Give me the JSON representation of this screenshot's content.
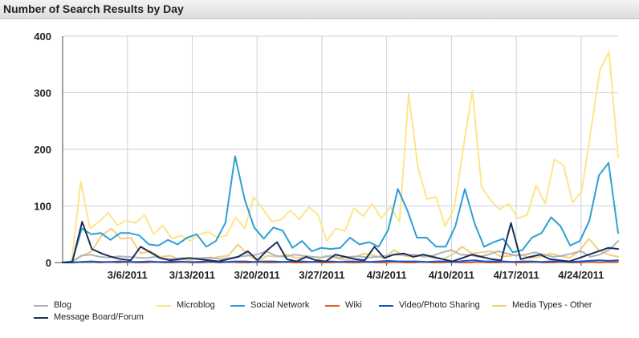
{
  "header": {
    "title": "Number of Search Results by Day"
  },
  "chart_data": {
    "type": "line",
    "title": "",
    "xlabel": "",
    "ylabel": "",
    "ylim": [
      0,
      400
    ],
    "y_ticks": [
      0,
      100,
      200,
      300,
      400
    ],
    "x_start": "2/27/2011",
    "x_end": "4/28/2011",
    "x_tick_labels": [
      "3/6/2011",
      "3/13/2011",
      "3/20/2011",
      "3/27/2011",
      "4/3/2011",
      "4/10/2011",
      "4/17/2011",
      "4/24/2011"
    ],
    "grid": true,
    "legend_position": "bottom",
    "series": [
      {
        "name": "Blog",
        "color": "#b4b4b4",
        "values": [
          0,
          1,
          12,
          14,
          10,
          9,
          11,
          10,
          9,
          8,
          10,
          7,
          6,
          8,
          7,
          8,
          9,
          6,
          8,
          10,
          12,
          14,
          20,
          12,
          10,
          14,
          12,
          10,
          9,
          12,
          8,
          10,
          11,
          9,
          10,
          12,
          14,
          13,
          14,
          10,
          12,
          18,
          22,
          14,
          13,
          10,
          14,
          20,
          16,
          12,
          14,
          18,
          14,
          10,
          12,
          16,
          20,
          10,
          14,
          22,
          38
        ]
      },
      {
        "name": "Microblog",
        "color": "#fce68a",
        "values": [
          0,
          2,
          143,
          60,
          72,
          88,
          66,
          74,
          70,
          84,
          50,
          66,
          42,
          48,
          38,
          50,
          54,
          44,
          48,
          80,
          60,
          116,
          94,
          72,
          76,
          92,
          76,
          98,
          86,
          38,
          60,
          56,
          96,
          82,
          104,
          78,
          98,
          72,
          298,
          170,
          112,
          116,
          64,
          96,
          202,
          304,
          134,
          110,
          94,
          104,
          78,
          84,
          136,
          104,
          182,
          172,
          106,
          126,
          232,
          340,
          372,
          186
        ]
      },
      {
        "name": "Social Network",
        "color": "#2e9fd4",
        "values": [
          0,
          2,
          60,
          50,
          52,
          40,
          52,
          52,
          48,
          32,
          30,
          40,
          32,
          44,
          50,
          28,
          38,
          70,
          188,
          112,
          62,
          42,
          62,
          56,
          26,
          38,
          20,
          26,
          24,
          26,
          44,
          32,
          36,
          28,
          58,
          130,
          92,
          44,
          44,
          28,
          28,
          64,
          130,
          70,
          28,
          36,
          42,
          18,
          22,
          44,
          52,
          80,
          64,
          30,
          38,
          74,
          154,
          176,
          52
        ]
      },
      {
        "name": "Wiki",
        "color": "#e0602a",
        "values": [
          0,
          0,
          1,
          1,
          0,
          1,
          0,
          1,
          0,
          0,
          1,
          0,
          0,
          1,
          0,
          0,
          1,
          0,
          1,
          0,
          0,
          1,
          0,
          0,
          1,
          0,
          0,
          1,
          0,
          0,
          1,
          0,
          0,
          1,
          0,
          0,
          1,
          0,
          0,
          1,
          0,
          0,
          1,
          0,
          0,
          1,
          0,
          0,
          1,
          0,
          0,
          1,
          0,
          0,
          1,
          0,
          0,
          1,
          0,
          1,
          1
        ]
      },
      {
        "name": "Video/Photo Sharing",
        "color": "#1656c4",
        "values": [
          0,
          0,
          1,
          2,
          1,
          1,
          2,
          1,
          1,
          2,
          1,
          1,
          2,
          1,
          1,
          2,
          1,
          1,
          2,
          2,
          1,
          2,
          2,
          1,
          2,
          2,
          1,
          2,
          2,
          1,
          2,
          2,
          1,
          2,
          3,
          2,
          2,
          2,
          1,
          2,
          2,
          1,
          3,
          4,
          2,
          2,
          2,
          1,
          2,
          2,
          1,
          2,
          2,
          1,
          2,
          3,
          4,
          3,
          4
        ]
      },
      {
        "name": "Media Types - Other",
        "color": "#f2cf7e",
        "values": [
          0,
          1,
          12,
          20,
          48,
          60,
          42,
          44,
          16,
          20,
          10,
          12,
          6,
          4,
          8,
          6,
          10,
          12,
          32,
          14,
          2,
          12,
          10,
          14,
          8,
          10,
          4,
          12,
          8,
          4,
          10,
          16,
          12,
          8,
          22,
          12,
          10,
          14,
          8,
          6,
          14,
          28,
          16,
          18,
          20,
          10,
          12,
          14,
          8,
          10,
          16,
          12,
          8,
          20,
          42,
          22,
          14,
          10
        ]
      },
      {
        "name": "Message Board/Forum",
        "color": "#1c2e5c",
        "values": [
          0,
          1,
          72,
          24,
          16,
          10,
          6,
          4,
          28,
          18,
          8,
          4,
          6,
          8,
          6,
          4,
          2,
          6,
          10,
          20,
          4,
          22,
          36,
          6,
          2,
          10,
          4,
          2,
          14,
          10,
          6,
          4,
          28,
          8,
          14,
          16,
          10,
          14,
          10,
          6,
          2,
          8,
          14,
          10,
          6,
          4,
          70,
          6,
          10,
          14,
          6,
          4,
          2,
          8,
          14,
          20,
          26,
          24
        ]
      }
    ]
  }
}
